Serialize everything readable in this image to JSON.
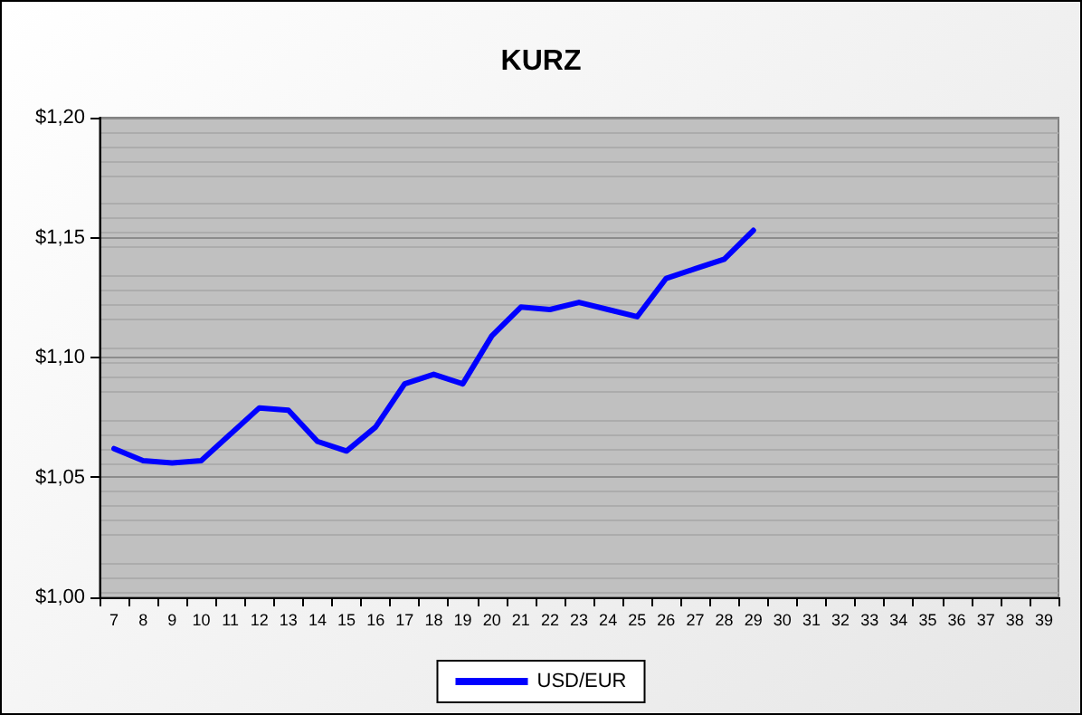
{
  "chart_data": {
    "type": "line",
    "title": "KURZ",
    "categories": [
      "7",
      "8",
      "9",
      "10",
      "11",
      "12",
      "13",
      "14",
      "15",
      "16",
      "17",
      "18",
      "19",
      "20",
      "21",
      "22",
      "23",
      "24",
      "25",
      "26",
      "27",
      "28",
      "29",
      "30",
      "31",
      "32",
      "33",
      "34",
      "35",
      "36",
      "37",
      "38",
      "39"
    ],
    "series": [
      {
        "name": "USD/EUR",
        "color": "#0000ff",
        "values": [
          1.062,
          1.057,
          1.056,
          1.057,
          1.068,
          1.079,
          1.078,
          1.065,
          1.061,
          1.071,
          1.089,
          1.093,
          1.089,
          1.109,
          1.121,
          1.12,
          1.123,
          1.12,
          1.117,
          1.133,
          1.137,
          1.141,
          1.153,
          null,
          null,
          null,
          null,
          null,
          null,
          null,
          null,
          null,
          null
        ]
      }
    ],
    "ylim": [
      1.0,
      1.2
    ],
    "yticks": [
      {
        "value": 1.0,
        "label": "$1,00"
      },
      {
        "value": 1.05,
        "label": "$1,05"
      },
      {
        "value": 1.1,
        "label": "$1,10"
      },
      {
        "value": 1.15,
        "label": "$1,15"
      },
      {
        "value": 1.2,
        "label": "$1,20"
      }
    ],
    "grid": "y",
    "legend": "bottom",
    "marker": "none",
    "line_style": "solid"
  }
}
